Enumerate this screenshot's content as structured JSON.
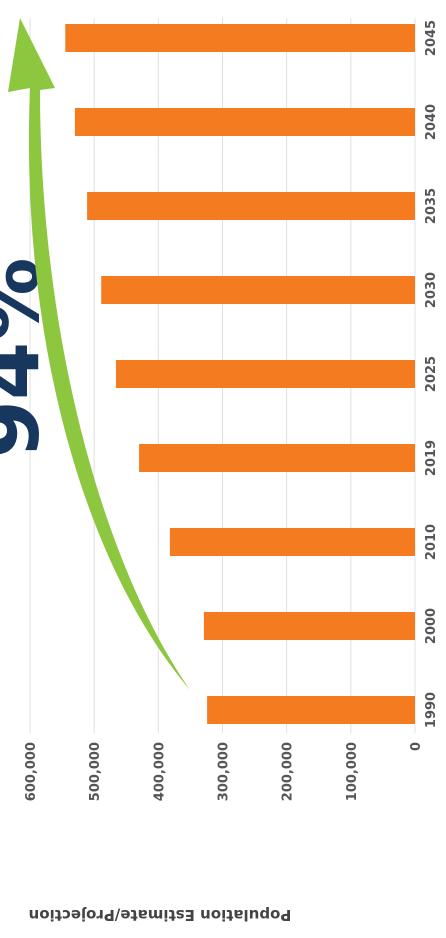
{
  "chart_data": {
    "type": "bar",
    "annotation": "94%",
    "y_label": "Population Estimate/Projection",
    "categories": [
      "1990",
      "2000",
      "2010",
      "2019",
      "2025",
      "2030",
      "2035",
      "2040",
      "2045"
    ],
    "values": [
      324000,
      329000,
      382000,
      430000,
      466000,
      489000,
      511000,
      530000,
      545000
    ],
    "color": "#f47b20",
    "ylim": [
      0,
      600000
    ],
    "yticks": [
      0,
      {
        "value": 100000,
        "label": "100,000"
      },
      {
        "value": 200000,
        "label": "200,000"
      },
      {
        "value": 300000,
        "label": "300,000"
      },
      {
        "value": 400000,
        "label": "400,000"
      },
      {
        "value": 500000,
        "label": "500,000"
      },
      {
        "value": 600000,
        "label": "600,000"
      }
    ],
    "grid": true
  }
}
